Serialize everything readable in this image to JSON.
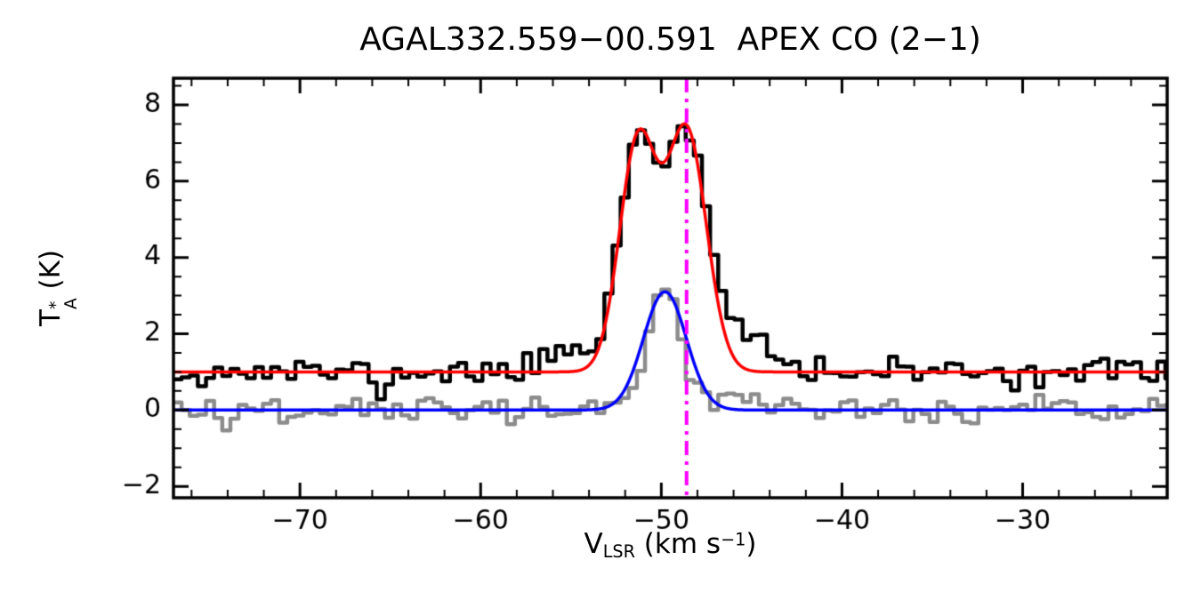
{
  "figure": {
    "title": "AGAL332.559−00.591  APEX CO (2−1)"
  },
  "axis_labels": {
    "y_main": "T",
    "y_sup": "*",
    "y_sub": "A",
    "y_unit": " (K)",
    "x_main": "V",
    "x_sub": "LSR",
    "x_mid": " (km s",
    "x_sup": "−1",
    "x_end": ")"
  },
  "chart_data": {
    "type": "line",
    "title": "AGAL332.559−00.591  APEX CO (2−1)",
    "xlabel": "V_LSR (km s−1)",
    "ylabel": "T_A* (K)",
    "xlim": [
      -77,
      -22
    ],
    "ylim": [
      -2.3,
      8.7
    ],
    "x_ticks": [
      -70,
      -60,
      -50,
      -40,
      -30
    ],
    "y_ticks": [
      -2,
      0,
      2,
      4,
      6,
      8
    ],
    "x_minor_step": 2,
    "y_minor_step": 0.5,
    "grid": false,
    "legend": false,
    "axis_color": "#000000",
    "series": [
      {
        "name": "CO (2-1) spectrum (black histogram, offset +1 K)",
        "role": "histogram",
        "color": "#000000",
        "line_width": 4.5,
        "baseline": 1.0,
        "noise_rms": 0.17,
        "noise_seed": 11,
        "channel_width": 0.45,
        "components": [
          {
            "center": -51.3,
            "amplitude": 6.0,
            "fwhm": 2.4
          },
          {
            "center": -48.6,
            "amplitude": 6.3,
            "fwhm": 2.6
          },
          {
            "center": -45.6,
            "amplitude": 1.0,
            "fwhm": 3.0
          },
          {
            "center": -54.9,
            "amplitude": 0.6,
            "fwhm": 3.2
          },
          {
            "center": -65.3,
            "amplitude": -0.55,
            "fwhm": 0.8
          }
        ],
        "peak_temperature_K": 7.5
      },
      {
        "name": "companion spectrum (gray histogram)",
        "role": "histogram",
        "color": "#8C8C8C",
        "line_width": 4.5,
        "baseline": 0.0,
        "noise_rms": 0.19,
        "noise_seed": 29,
        "channel_width": 0.45,
        "components": [
          {
            "center": -49.8,
            "amplitude": 3.2,
            "fwhm": 2.4
          },
          {
            "center": -46.3,
            "amplitude": 0.45,
            "fwhm": 3.2
          },
          {
            "center": -74.2,
            "amplitude": -0.55,
            "fwhm": 0.9
          }
        ],
        "peak_temperature_K": 3.4
      },
      {
        "name": "Gaussian fit to black spectrum (red)",
        "role": "fit",
        "color": "#FF0000",
        "line_width": 3.5,
        "baseline": 1.0,
        "components": [
          {
            "center": -51.3,
            "amplitude": 6.0,
            "fwhm": 2.4
          },
          {
            "center": -48.6,
            "amplitude": 6.3,
            "fwhm": 2.6
          }
        ]
      },
      {
        "name": "Gaussian fit to gray spectrum (blue)",
        "role": "fit",
        "color": "#0000FF",
        "line_width": 3.5,
        "baseline": 0.0,
        "components": [
          {
            "center": -49.8,
            "amplitude": 3.1,
            "fwhm": 2.8
          }
        ]
      }
    ],
    "vline": {
      "x": -48.6,
      "color": "#FF00FF",
      "line_style": "dash-dot",
      "line_width": 4,
      "name": "systemic-velocity-marker"
    }
  }
}
